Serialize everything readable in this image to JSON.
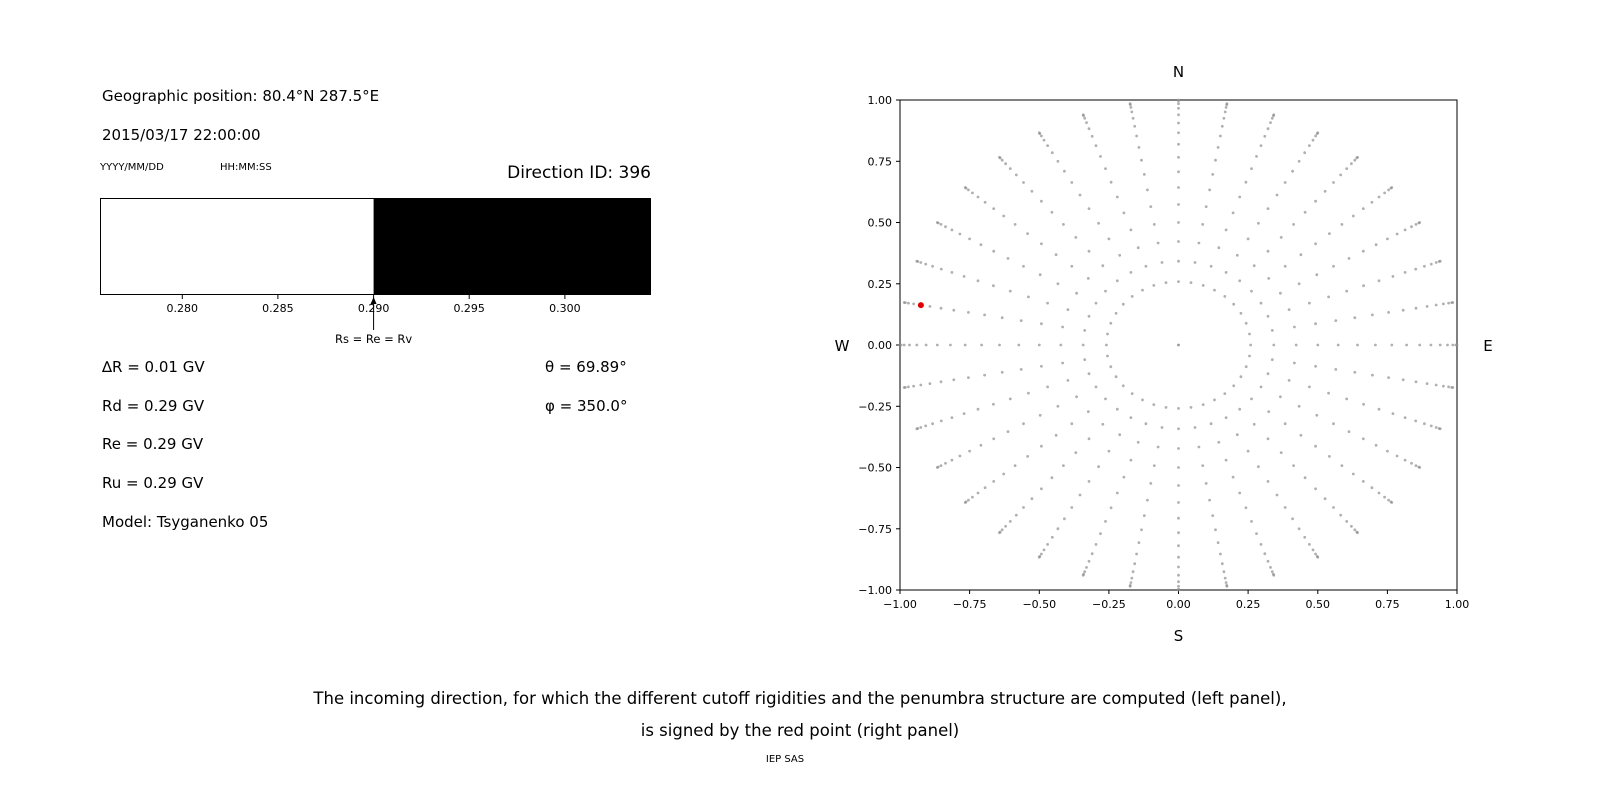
{
  "figure": {
    "background": "#ffffff"
  },
  "left_panel": {
    "geo_position": "Geographic position: 80.4°N 287.5°E",
    "datetime": "2015/03/17 22:00:00",
    "date_format_label": "YYYY/MM/DD",
    "time_format_label": "HH:MM:SS",
    "direction_id": "Direction ID: 396",
    "delta_r": "∆R = 0.01 GV",
    "rd": "Rd = 0.29 GV",
    "re": "Re = 0.29 GV",
    "ru": "Ru = 0.29 GV",
    "model": "Model: Tsyganenko 05",
    "theta": "θ = 69.89°",
    "phi": "φ = 350.0°"
  },
  "caption": {
    "line1": "The incoming direction, for which the different cutoff rigidities and the penumbra structure are computed (left panel),",
    "line2": "is signed by the red point (right panel)",
    "credit": "IEP SAS"
  },
  "chart_data": [
    {
      "id": "penumbra-spectrum",
      "type": "area",
      "xlim": [
        0.2757,
        0.3045
      ],
      "x_unit": "GV",
      "xticks": [
        {
          "v": 0.28,
          "label": "0.280"
        },
        {
          "v": 0.285,
          "label": "0.285"
        },
        {
          "v": 0.29,
          "label": "0.290"
        },
        {
          "v": 0.295,
          "label": "0.295"
        },
        {
          "v": 0.3,
          "label": "0.300"
        }
      ],
      "regions": [
        {
          "from": 0.2757,
          "to": 0.29,
          "color": "#ffffff"
        },
        {
          "from": 0.29,
          "to": 0.3045,
          "color": "#000000"
        }
      ],
      "annotation": {
        "x": 0.29,
        "label": "Rs = Re = Rv"
      }
    },
    {
      "id": "arrival-directions",
      "type": "scatter",
      "xlim": [
        -1.0,
        1.0
      ],
      "ylim": [
        -1.0,
        1.0
      ],
      "xticks": [
        {
          "v": -1.0,
          "label": "−1.00"
        },
        {
          "v": -0.75,
          "label": "−0.75"
        },
        {
          "v": -0.5,
          "label": "−0.50"
        },
        {
          "v": -0.25,
          "label": "−0.25"
        },
        {
          "v": 0.0,
          "label": "0.00"
        },
        {
          "v": 0.25,
          "label": "0.25"
        },
        {
          "v": 0.5,
          "label": "0.50"
        },
        {
          "v": 0.75,
          "label": "0.75"
        },
        {
          "v": 1.0,
          "label": "1.00"
        }
      ],
      "yticks": [
        {
          "v": -1.0,
          "label": "−1.00"
        },
        {
          "v": -0.75,
          "label": "−0.75"
        },
        {
          "v": -0.5,
          "label": "−0.50"
        },
        {
          "v": -0.25,
          "label": "−0.25"
        },
        {
          "v": 0.0,
          "label": "0.00"
        },
        {
          "v": 0.25,
          "label": "0.25"
        },
        {
          "v": 0.5,
          "label": "0.50"
        },
        {
          "v": 0.75,
          "label": "0.75"
        },
        {
          "v": 1.0,
          "label": "1.00"
        }
      ],
      "compass": {
        "top": "N",
        "bottom": "S",
        "left": "W",
        "right": "E"
      },
      "direction_grid": {
        "azimuth_deg": {
          "start": 0,
          "step": 10,
          "count": 36
        },
        "zenith_deg": {
          "start": 15,
          "step": 5,
          "end": 90
        },
        "radius": "sin(zenith)",
        "center_point": true,
        "dot_color": "#8f8f8f"
      },
      "highlight_point": {
        "x": -0.925,
        "y": 0.163,
        "color": "#e00000"
      }
    }
  ]
}
